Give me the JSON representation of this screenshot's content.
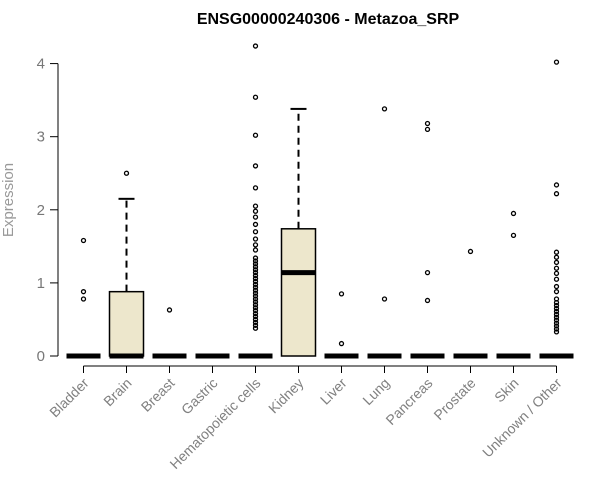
{
  "chart_data": {
    "type": "boxplot",
    "title": "ENSG00000240306 - Metazoa_SRP",
    "ylabel": "Expression",
    "xlabel": "",
    "ylim": [
      0,
      4.35
    ],
    "yticks": [
      0,
      1,
      2,
      3,
      4
    ],
    "box_color": "#ede7cc",
    "categories": [
      "Bladder",
      "Brain",
      "Breast",
      "Gastric",
      "Hematopoietic cells",
      "Kidney",
      "Liver",
      "Lung",
      "Pancreas",
      "Prostate",
      "Skin",
      "Unknown / Other"
    ],
    "boxes": [
      {
        "q1": 0,
        "median": 0,
        "q3": 0,
        "lo": 0,
        "hi": 0,
        "outliers": [
          0.78,
          0.88,
          1.58
        ]
      },
      {
        "q1": 0,
        "median": 0,
        "q3": 0.88,
        "lo": 0,
        "hi": 2.15,
        "outliers": [
          2.5
        ]
      },
      {
        "q1": 0,
        "median": 0,
        "q3": 0,
        "lo": 0,
        "hi": 0,
        "outliers": [
          0.63
        ]
      },
      {
        "q1": 0,
        "median": 0,
        "q3": 0,
        "lo": 0,
        "hi": 0,
        "outliers": []
      },
      {
        "q1": 0,
        "median": 0,
        "q3": 0,
        "lo": 0,
        "hi": 0,
        "outliers": [
          0.38,
          0.42,
          0.46,
          0.5,
          0.54,
          0.58,
          0.62,
          0.66,
          0.7,
          0.74,
          0.78,
          0.82,
          0.86,
          0.9,
          0.94,
          0.98,
          1.02,
          1.06,
          1.1,
          1.14,
          1.18,
          1.22,
          1.26,
          1.3,
          1.34,
          1.45,
          1.52,
          1.6,
          1.7,
          1.8,
          1.9,
          1.98,
          2.05,
          2.3,
          2.6,
          3.02,
          3.54,
          4.24
        ]
      },
      {
        "q1": 0,
        "median": 1.14,
        "q3": 1.74,
        "lo": 0,
        "hi": 3.38,
        "outliers": []
      },
      {
        "q1": 0,
        "median": 0,
        "q3": 0,
        "lo": 0,
        "hi": 0,
        "outliers": [
          0.17,
          0.85
        ]
      },
      {
        "q1": 0,
        "median": 0,
        "q3": 0,
        "lo": 0,
        "hi": 0,
        "outliers": [
          0.78,
          3.38
        ]
      },
      {
        "q1": 0,
        "median": 0,
        "q3": 0,
        "lo": 0,
        "hi": 0,
        "outliers": [
          0.76,
          1.14,
          3.1,
          3.18
        ]
      },
      {
        "q1": 0,
        "median": 0,
        "q3": 0,
        "lo": 0,
        "hi": 0,
        "outliers": [
          1.43
        ]
      },
      {
        "q1": 0,
        "median": 0,
        "q3": 0,
        "lo": 0,
        "hi": 0,
        "outliers": [
          1.65,
          1.95
        ]
      },
      {
        "q1": 0,
        "median": 0,
        "q3": 0,
        "lo": 0,
        "hi": 0,
        "outliers": [
          0.33,
          0.37,
          0.41,
          0.45,
          0.49,
          0.53,
          0.57,
          0.61,
          0.65,
          0.69,
          0.73,
          0.78,
          0.88,
          0.95,
          1.05,
          1.13,
          1.2,
          1.28,
          1.35,
          1.42,
          2.22,
          2.34,
          4.02
        ]
      }
    ]
  }
}
